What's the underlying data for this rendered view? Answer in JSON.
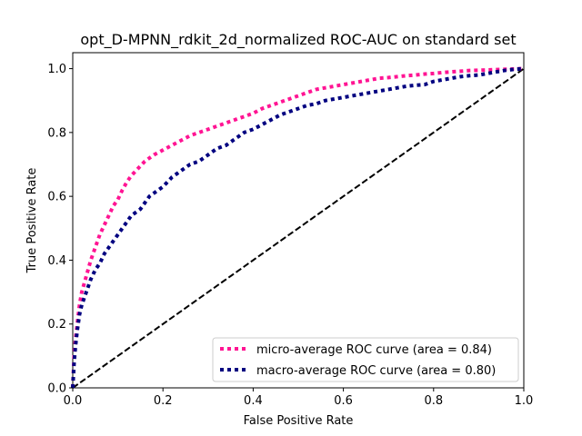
{
  "chart_data": {
    "type": "line",
    "title": "opt_D-MPNN_rdkit_2d_normalized ROC-AUC on standard set",
    "xlabel": "False Positive Rate",
    "ylabel": "True Positive Rate",
    "xlim": [
      0.0,
      1.0
    ],
    "ylim": [
      0.0,
      1.05
    ],
    "x_ticks": [
      "0.0",
      "0.2",
      "0.4",
      "0.6",
      "0.8",
      "1.0"
    ],
    "y_ticks": [
      "0.0",
      "0.2",
      "0.4",
      "0.6",
      "0.8",
      "1.0"
    ],
    "grid": false,
    "legend_position": "lower-right",
    "series": [
      {
        "name": "micro-average ROC curve (area = 0.84)",
        "color": "#ff1493",
        "style": "dotted",
        "x": [
          0.0,
          0.003,
          0.006,
          0.01,
          0.015,
          0.02,
          0.03,
          0.04,
          0.05,
          0.06,
          0.07,
          0.08,
          0.09,
          0.1,
          0.11,
          0.12,
          0.13,
          0.14,
          0.15,
          0.16,
          0.17,
          0.18,
          0.2,
          0.22,
          0.24,
          0.26,
          0.28,
          0.3,
          0.32,
          0.34,
          0.36,
          0.38,
          0.4,
          0.42,
          0.44,
          0.46,
          0.48,
          0.5,
          0.52,
          0.54,
          0.56,
          0.58,
          0.6,
          0.62,
          0.64,
          0.66,
          0.68,
          0.7,
          0.72,
          0.74,
          0.76,
          0.78,
          0.8,
          0.82,
          0.84,
          0.86,
          0.88,
          0.9,
          0.92,
          0.94,
          0.96,
          0.98,
          1.0
        ],
        "y": [
          0.0,
          0.1,
          0.15,
          0.2,
          0.26,
          0.3,
          0.35,
          0.4,
          0.44,
          0.48,
          0.51,
          0.54,
          0.57,
          0.59,
          0.62,
          0.645,
          0.665,
          0.68,
          0.695,
          0.71,
          0.72,
          0.73,
          0.745,
          0.76,
          0.775,
          0.79,
          0.8,
          0.81,
          0.82,
          0.83,
          0.84,
          0.85,
          0.86,
          0.875,
          0.885,
          0.895,
          0.905,
          0.915,
          0.925,
          0.935,
          0.94,
          0.945,
          0.95,
          0.955,
          0.96,
          0.965,
          0.97,
          0.972,
          0.975,
          0.978,
          0.98,
          0.983,
          0.985,
          0.988,
          0.99,
          0.992,
          0.994,
          0.995,
          0.996,
          0.997,
          0.998,
          0.999,
          1.0
        ]
      },
      {
        "name": "macro-average ROC curve (area = 0.80)",
        "color": "#000080",
        "style": "dotted",
        "x": [
          0.0,
          0.003,
          0.006,
          0.01,
          0.015,
          0.02,
          0.03,
          0.04,
          0.05,
          0.06,
          0.07,
          0.08,
          0.09,
          0.1,
          0.11,
          0.12,
          0.13,
          0.14,
          0.15,
          0.16,
          0.17,
          0.18,
          0.2,
          0.22,
          0.24,
          0.26,
          0.28,
          0.3,
          0.32,
          0.34,
          0.36,
          0.38,
          0.4,
          0.42,
          0.44,
          0.46,
          0.48,
          0.5,
          0.52,
          0.54,
          0.56,
          0.58,
          0.6,
          0.62,
          0.64,
          0.66,
          0.68,
          0.7,
          0.72,
          0.74,
          0.76,
          0.78,
          0.8,
          0.82,
          0.84,
          0.86,
          0.88,
          0.9,
          0.92,
          0.94,
          0.96,
          0.98,
          1.0
        ],
        "y": [
          0.0,
          0.08,
          0.13,
          0.18,
          0.23,
          0.26,
          0.3,
          0.34,
          0.37,
          0.39,
          0.42,
          0.44,
          0.46,
          0.48,
          0.5,
          0.52,
          0.54,
          0.55,
          0.56,
          0.58,
          0.6,
          0.61,
          0.63,
          0.66,
          0.68,
          0.7,
          0.71,
          0.73,
          0.75,
          0.76,
          0.78,
          0.8,
          0.81,
          0.825,
          0.84,
          0.855,
          0.865,
          0.875,
          0.885,
          0.89,
          0.9,
          0.905,
          0.91,
          0.915,
          0.92,
          0.925,
          0.93,
          0.935,
          0.94,
          0.945,
          0.948,
          0.95,
          0.96,
          0.965,
          0.97,
          0.975,
          0.978,
          0.98,
          0.985,
          0.99,
          0.995,
          0.998,
          1.0
        ]
      },
      {
        "name": "",
        "color": "#000000",
        "style": "dashed",
        "x": [
          0.0,
          1.0
        ],
        "y": [
          0.0,
          1.0
        ]
      }
    ],
    "legend_entries": [
      "micro-average ROC curve (area = 0.84)",
      "macro-average ROC curve (area = 0.80)"
    ]
  }
}
